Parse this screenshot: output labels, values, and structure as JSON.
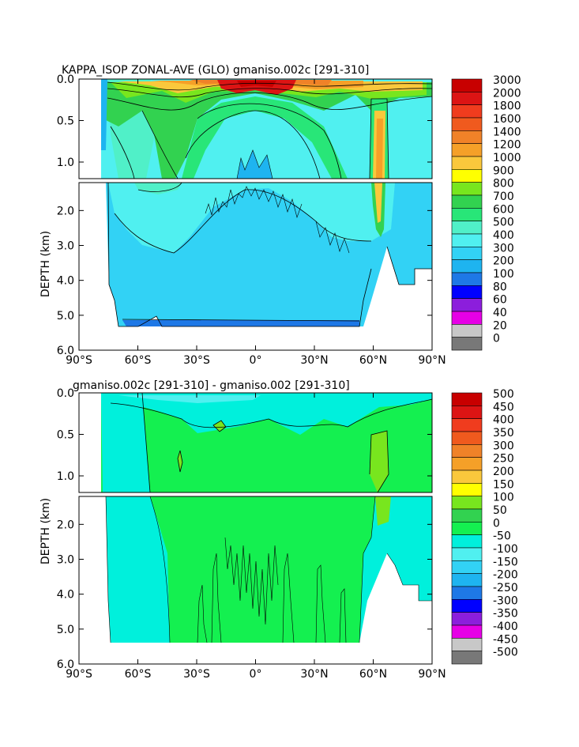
{
  "chart_data": [
    {
      "type": "heatmap",
      "title": "KAPPA_ISOP ZONAL-AVE (GLO) gmaniso.002c [291-310]",
      "ylabel": "DEPTH (km)",
      "xlabel": "",
      "x_ticks": [
        "90°S",
        "60°S",
        "30°S",
        "0°",
        "30°N",
        "60°N",
        "90°N"
      ],
      "x_range": [
        -90,
        90
      ],
      "upper_y_ticks": [
        "0.0",
        "0.5",
        "1.0"
      ],
      "lower_y_ticks": [
        "2.0",
        "3.0",
        "4.0",
        "5.0",
        "6.0"
      ],
      "y_range_km": [
        0,
        6
      ],
      "colorbar_labels": [
        "3000",
        "2000",
        "1800",
        "1600",
        "1400",
        "1200",
        "1000",
        "900",
        "800",
        "700",
        "600",
        "500",
        "400",
        "300",
        "200",
        "100",
        "80",
        "60",
        "40",
        "20",
        "0"
      ],
      "colors": [
        "#c80000",
        "#dc1414",
        "#f03c1e",
        "#f05a1e",
        "#f08228",
        "#f5a028",
        "#fac83c",
        "#ffff00",
        "#78e61e",
        "#32d250",
        "#28e678",
        "#50f0c8",
        "#50f0f0",
        "#32d2f5",
        "#1eb4f0",
        "#1e78e6",
        "#0000ff",
        "#8c1edc",
        "#e600e6",
        "#c8c8c8",
        "#787878"
      ],
      "grid": false
    },
    {
      "type": "heatmap",
      "title": "gmaniso.002c [291-310] - gmaniso.002 [291-310]",
      "ylabel": "DEPTH (km)",
      "xlabel": "",
      "x_ticks": [
        "90°S",
        "60°S",
        "30°S",
        "0°",
        "30°N",
        "60°N",
        "90°N"
      ],
      "x_range": [
        -90,
        90
      ],
      "upper_y_ticks": [
        "0.0",
        "0.5",
        "1.0"
      ],
      "lower_y_ticks": [
        "2.0",
        "3.0",
        "4.0",
        "5.0",
        "6.0"
      ],
      "y_range_km": [
        0,
        6
      ],
      "colorbar_labels": [
        "500",
        "450",
        "400",
        "350",
        "300",
        "250",
        "200",
        "150",
        "100",
        "50",
        "0",
        "-50",
        "-100",
        "-150",
        "-200",
        "-250",
        "-300",
        "-350",
        "-400",
        "-450",
        "-500"
      ],
      "colors": [
        "#c80000",
        "#dc1414",
        "#f03c1e",
        "#f05a1e",
        "#f08228",
        "#f5a028",
        "#fac83c",
        "#ffff00",
        "#78e61e",
        "#32d250",
        "#14f050",
        "#00f0dc",
        "#50f0f0",
        "#32d2f5",
        "#1eb4f0",
        "#1e78e6",
        "#0000ff",
        "#8c1edc",
        "#e600e6",
        "#c8c8c8",
        "#787878"
      ],
      "grid": false
    }
  ]
}
